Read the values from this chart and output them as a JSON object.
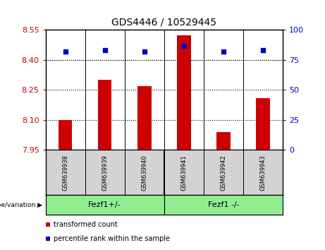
{
  "title": "GDS4446 / 10529445",
  "samples": [
    "GSM639938",
    "GSM639939",
    "GSM639940",
    "GSM639941",
    "GSM639942",
    "GSM639943"
  ],
  "bar_values": [
    8.1,
    8.3,
    8.27,
    8.525,
    8.04,
    8.21
  ],
  "percentile_values": [
    82,
    83,
    82,
    87,
    82,
    83
  ],
  "y_min": 7.95,
  "y_max": 8.55,
  "y_ticks": [
    7.95,
    8.1,
    8.25,
    8.4,
    8.55
  ],
  "y2_ticks": [
    0,
    25,
    50,
    75,
    100
  ],
  "bar_color": "#cc0000",
  "percentile_color": "#0000cc",
  "bar_bottom": 7.95,
  "group1_label": "Fezf1+/-",
  "group2_label": "Fezf1 -/-",
  "genotype_label": "genotype/variation",
  "legend_bar_label": "transformed count",
  "legend_pct_label": "percentile rank within the sample",
  "group_bg_color": "#90ee90",
  "sample_bg_color": "#d3d3d3",
  "title_fontsize": 10,
  "axis_label_color_red": "#cc0000",
  "axis_label_color_blue": "#0000cc",
  "tick_fontsize": 8,
  "sample_fontsize": 6,
  "group_fontsize": 8,
  "legend_fontsize": 7,
  "bar_width": 0.35
}
